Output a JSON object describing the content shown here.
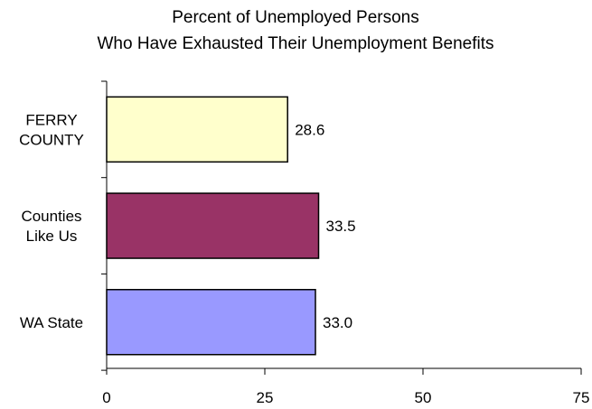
{
  "chart_data": {
    "type": "bar",
    "orientation": "horizontal",
    "title_lines": [
      "Percent of Unemployed Persons",
      "Who Have Exhausted Their Unemployment Benefits"
    ],
    "categories": [
      {
        "lines": [
          "FERRY",
          "COUNTY"
        ]
      },
      {
        "lines": [
          "Counties",
          "Like Us"
        ]
      },
      {
        "lines": [
          "WA State"
        ]
      }
    ],
    "values": [
      28.6,
      33.5,
      33.0
    ],
    "data_labels": [
      "28.6",
      "33.5",
      "33.0"
    ],
    "colors": [
      "#ffffcc",
      "#993366",
      "#9999ff"
    ],
    "xlim": [
      0,
      75
    ],
    "xticks": [
      0,
      25,
      50,
      75
    ],
    "grid": false,
    "legend": "none"
  }
}
